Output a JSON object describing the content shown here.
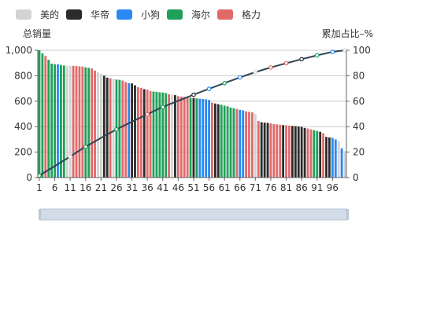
{
  "chart_data": {
    "type": "bar",
    "legend": [
      {
        "name": "美的",
        "color": "#d3d3d3"
      },
      {
        "name": "华帝",
        "color": "#2b2b2b"
      },
      {
        "name": "小狗",
        "color": "#2b89f5"
      },
      {
        "name": "海尔",
        "color": "#1fa05a"
      },
      {
        "name": "格力",
        "color": "#e06a6a"
      }
    ],
    "legend_position": "top-left",
    "y_left": {
      "label": "总销量",
      "min": 0,
      "max": 1000,
      "ticks": [
        "0",
        "200",
        "400",
        "600",
        "800",
        "1,000"
      ]
    },
    "y_right": {
      "label": "累加占比–%",
      "min": 0,
      "max": 100,
      "ticks": [
        "0",
        "20",
        "40",
        "60",
        "80",
        "100"
      ]
    },
    "x": {
      "min": 1,
      "max": 100,
      "tick_labels": [
        "1",
        "6",
        "11",
        "16",
        "21",
        "26",
        "31",
        "36",
        "41",
        "46",
        "51",
        "56",
        "61",
        "66",
        "71",
        "76",
        "81",
        "86",
        "91",
        "96"
      ]
    },
    "grid": true,
    "bar_series_index": [
      3,
      3,
      4,
      3,
      3,
      3,
      2,
      3,
      3,
      0,
      0,
      4,
      4,
      4,
      4,
      3,
      3,
      4,
      4,
      0,
      0,
      1,
      1,
      4,
      0,
      3,
      3,
      4,
      4,
      2,
      1,
      1,
      4,
      4,
      1,
      4,
      4,
      3,
      3,
      3,
      3,
      3,
      4,
      0,
      1,
      4,
      4,
      4,
      4,
      3,
      1,
      3,
      2,
      2,
      2,
      2,
      4,
      1,
      1,
      3,
      3,
      3,
      3,
      3,
      4,
      2,
      2,
      4,
      4,
      4,
      0,
      4,
      1,
      1,
      1,
      4,
      4,
      4,
      4,
      1,
      4,
      4,
      1,
      1,
      1,
      1,
      1,
      4,
      4,
      3,
      3,
      1,
      4,
      1,
      1,
      2,
      2,
      0,
      2,
      0
    ],
    "values": [
      1000,
      975,
      955,
      925,
      895,
      890,
      890,
      885,
      880,
      878,
      878,
      878,
      876,
      874,
      872,
      866,
      862,
      857,
      840,
      830,
      815,
      800,
      785,
      780,
      775,
      770,
      768,
      762,
      750,
      742,
      740,
      725,
      710,
      705,
      695,
      690,
      680,
      676,
      674,
      670,
      668,
      664,
      655,
      652,
      648,
      640,
      636,
      634,
      630,
      627,
      625,
      622,
      620,
      617,
      615,
      610,
      588,
      582,
      576,
      572,
      565,
      560,
      550,
      545,
      540,
      532,
      528,
      520,
      516,
      512,
      500,
      445,
      435,
      432,
      430,
      425,
      420,
      418,
      415,
      412,
      410,
      408,
      406,
      404,
      402,
      398,
      390,
      385,
      378,
      372,
      366,
      360,
      348,
      320,
      316,
      312,
      300,
      286,
      230,
      208
    ],
    "cumulative_percent_markers": [
      {
        "x": 1,
        "y": 1.6
      },
      {
        "x": 11,
        "y": 16.5
      },
      {
        "x": 16,
        "y": 24.2
      },
      {
        "x": 26,
        "y": 37.8
      },
      {
        "x": 36,
        "y": 49.7
      },
      {
        "x": 41,
        "y": 55.4
      },
      {
        "x": 51,
        "y": 65.1
      },
      {
        "x": 56,
        "y": 69.7
      },
      {
        "x": 61,
        "y": 74.2
      },
      {
        "x": 66,
        "y": 78.7
      },
      {
        "x": 71,
        "y": 82.8
      },
      {
        "x": 76,
        "y": 86.5
      },
      {
        "x": 81,
        "y": 89.8
      },
      {
        "x": 86,
        "y": 93.0
      },
      {
        "x": 91,
        "y": 96.0
      },
      {
        "x": 96,
        "y": 98.7
      },
      {
        "x": 100,
        "y": 100
      }
    ]
  },
  "colors": {
    "line": "#2f4554",
    "grid": "#cccccc",
    "axis": "#666666",
    "datazoom_fill": "#d2dbe8",
    "datazoom_border": "#bcc6d4"
  }
}
